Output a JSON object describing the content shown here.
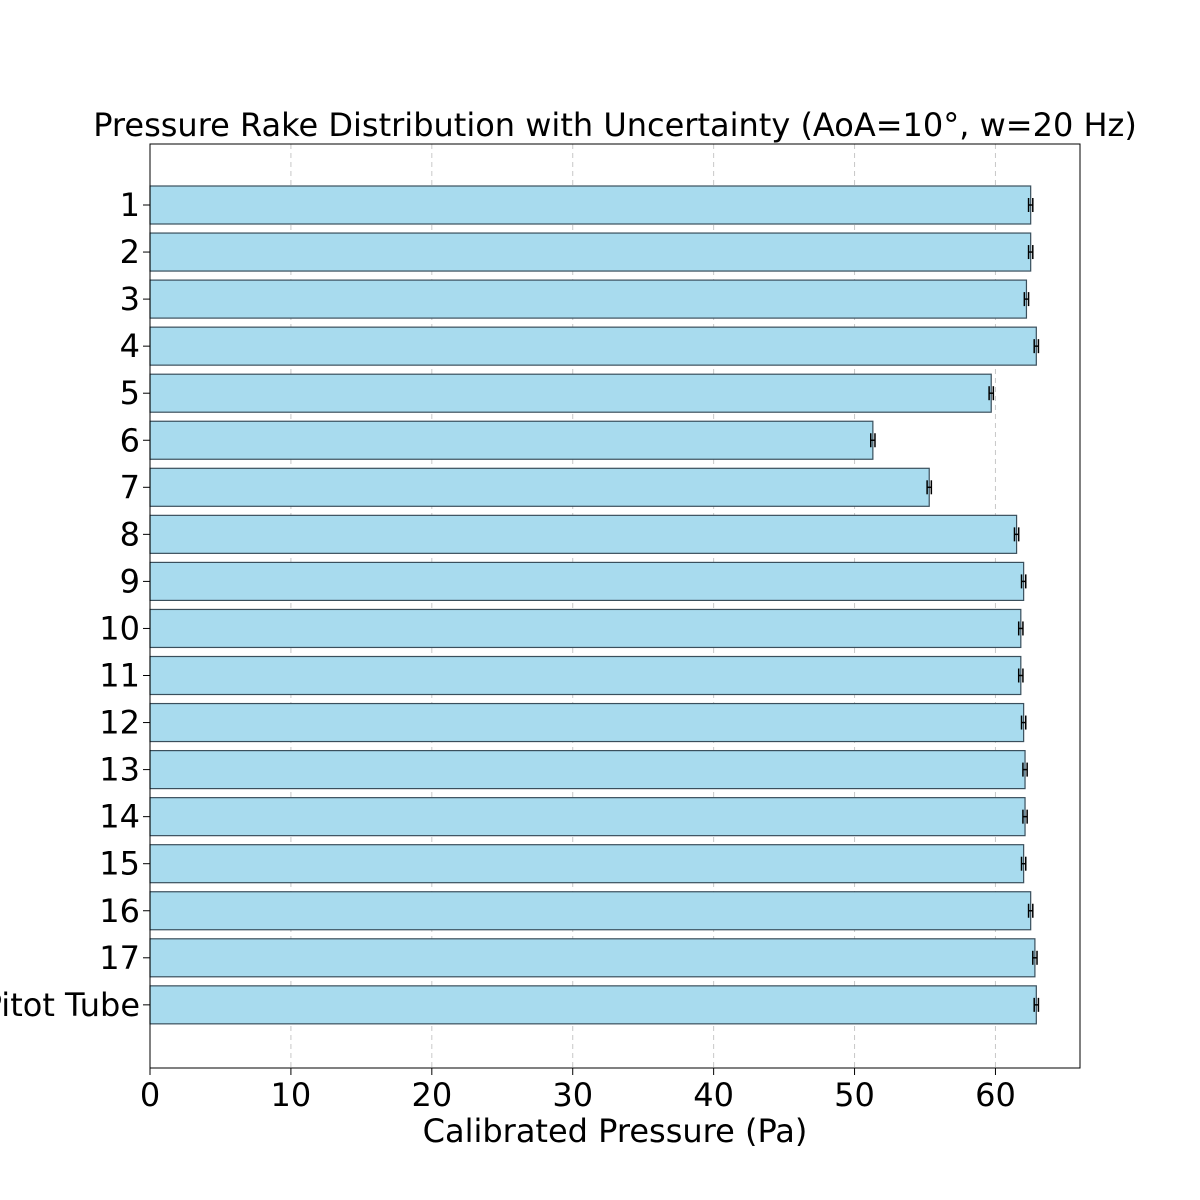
{
  "chart_data": {
    "type": "bar",
    "orientation": "horizontal",
    "title": "Pressure Rake Distribution with Uncertainty (AoA=10°, w=20 Hz)",
    "xlabel": "Calibrated Pressure (Pa)",
    "ylabel": "",
    "categories": [
      "1",
      "2",
      "3",
      "4",
      "5",
      "6",
      "7",
      "8",
      "9",
      "10",
      "11",
      "12",
      "13",
      "14",
      "15",
      "16",
      "17",
      "Pitot Tube"
    ],
    "values": [
      62.5,
      62.5,
      62.2,
      62.9,
      59.7,
      51.3,
      55.3,
      61.5,
      62.0,
      61.8,
      61.8,
      62.0,
      62.1,
      62.1,
      62.0,
      62.5,
      62.8,
      62.9
    ],
    "errors": [
      0.15,
      0.15,
      0.15,
      0.15,
      0.15,
      0.15,
      0.15,
      0.15,
      0.15,
      0.15,
      0.15,
      0.15,
      0.15,
      0.15,
      0.15,
      0.15,
      0.15,
      0.15
    ],
    "xlim": [
      0,
      66
    ],
    "xticks": [
      0,
      10,
      20,
      30,
      40,
      50,
      60
    ],
    "grid": "x-dashed",
    "colors": {
      "bar_fill": "#a8dbee",
      "bar_edge": "#3a4f5c",
      "grid": "#c8c8c8",
      "errorbar": "#000000"
    }
  }
}
